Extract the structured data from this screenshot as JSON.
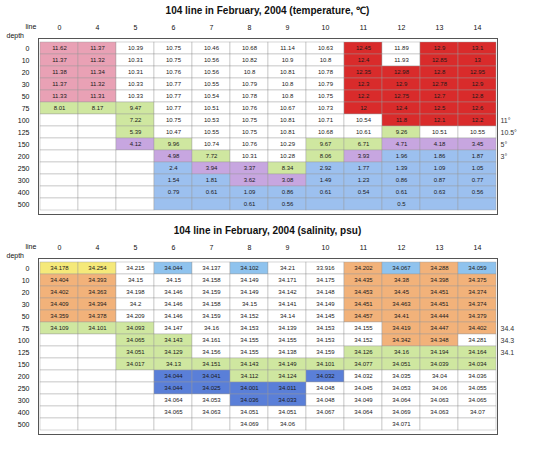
{
  "chart_data": [
    {
      "type": "heatmap",
      "title": "104 line in February, 2004 (temperature, ℃)",
      "x_label": "line",
      "y_label": "depth",
      "x": [
        0,
        4,
        5,
        6,
        7,
        8,
        9,
        10,
        11,
        12,
        13,
        14
      ],
      "y": [
        0,
        10,
        20,
        30,
        50,
        75,
        100,
        125,
        150,
        200,
        250,
        300,
        400,
        500
      ],
      "values": [
        [
          11.62,
          11.37,
          10.39,
          10.75,
          10.46,
          10.68,
          11.14,
          10.63,
          12.45,
          11.89,
          12.9,
          13.1
        ],
        [
          11.37,
          11.32,
          10.31,
          10.75,
          10.56,
          10.82,
          10.9,
          10.8,
          12.4,
          11.93,
          12.85,
          13.0
        ],
        [
          11.38,
          11.34,
          10.31,
          10.76,
          10.56,
          10.8,
          10.81,
          10.78,
          12.35,
          12.98,
          12.8,
          12.95
        ],
        [
          11.37,
          11.32,
          10.33,
          10.77,
          10.55,
          10.79,
          10.8,
          10.79,
          12.3,
          12.9,
          12.78,
          12.9
        ],
        [
          11.33,
          11.31,
          10.33,
          10.77,
          10.54,
          10.78,
          10.8,
          10.75,
          12.2,
          12.75,
          12.7,
          12.8
        ],
        [
          8.01,
          8.17,
          9.47,
          10.77,
          10.51,
          10.76,
          10.67,
          10.73,
          12.0,
          12.4,
          12.5,
          12.6
        ],
        [
          null,
          null,
          7.22,
          10.75,
          10.53,
          10.75,
          10.81,
          10.71,
          10.54,
          11.8,
          12.1,
          12.2
        ],
        [
          null,
          null,
          5.39,
          10.47,
          10.55,
          10.75,
          10.81,
          10.68,
          10.61,
          9.26,
          10.51,
          10.55
        ],
        [
          null,
          null,
          4.12,
          9.96,
          10.74,
          10.76,
          10.29,
          9.67,
          6.71,
          4.71,
          4.18,
          3.45
        ],
        [
          null,
          null,
          null,
          4.98,
          7.72,
          10.31,
          10.28,
          8.06,
          3.93,
          1.96,
          1.86,
          1.87
        ],
        [
          null,
          null,
          null,
          2.4,
          3.94,
          3.37,
          8.34,
          2.92,
          1.77,
          1.39,
          1.09,
          1.05
        ],
        [
          null,
          null,
          null,
          1.54,
          1.81,
          3.62,
          3.08,
          1.49,
          1.23,
          0.86,
          0.87,
          0.77
        ],
        [
          null,
          null,
          null,
          0.79,
          0.61,
          1.09,
          0.86,
          0.61,
          0.54,
          0.61,
          0.63,
          0.56
        ],
        [
          null,
          null,
          null,
          null,
          null,
          0.61,
          0.56,
          null,
          null,
          0.5,
          null,
          null
        ]
      ],
      "colors": [
        "#ffffff",
        "#e9a1b5",
        "#d92b2b",
        "#cfe7a0",
        "#c7a6e0",
        "#9cc0ef"
      ],
      "color_index": [
        [
          1,
          1,
          0,
          0,
          0,
          0,
          0,
          0,
          2,
          0,
          2,
          2
        ],
        [
          1,
          1,
          0,
          0,
          0,
          0,
          0,
          0,
          2,
          0,
          2,
          2
        ],
        [
          1,
          1,
          0,
          0,
          0,
          0,
          0,
          0,
          2,
          2,
          2,
          2
        ],
        [
          1,
          1,
          0,
          0,
          0,
          0,
          0,
          0,
          2,
          2,
          2,
          2
        ],
        [
          1,
          1,
          0,
          0,
          0,
          0,
          0,
          0,
          2,
          2,
          2,
          2
        ],
        [
          3,
          3,
          3,
          0,
          0,
          0,
          0,
          0,
          2,
          2,
          2,
          2
        ],
        [
          0,
          0,
          3,
          0,
          0,
          0,
          0,
          0,
          0,
          2,
          2,
          2
        ],
        [
          0,
          0,
          3,
          0,
          0,
          0,
          0,
          0,
          0,
          3,
          0,
          0
        ],
        [
          0,
          0,
          4,
          3,
          0,
          0,
          0,
          3,
          3,
          4,
          4,
          4
        ],
        [
          0,
          0,
          0,
          4,
          3,
          0,
          0,
          3,
          4,
          5,
          5,
          5
        ],
        [
          0,
          0,
          0,
          5,
          4,
          4,
          3,
          5,
          5,
          5,
          5,
          5
        ],
        [
          0,
          0,
          0,
          5,
          5,
          4,
          4,
          5,
          5,
          5,
          5,
          5
        ],
        [
          0,
          0,
          0,
          5,
          5,
          5,
          5,
          5,
          5,
          5,
          5,
          5
        ],
        [
          0,
          0,
          0,
          5,
          5,
          5,
          5,
          5,
          5,
          5,
          5,
          5
        ]
      ],
      "annotations": [
        {
          "text": "11°",
          "depth": 100
        },
        {
          "text": "10.5°",
          "depth": 125
        },
        {
          "text": "5°",
          "depth": 150
        },
        {
          "text": "3°",
          "depth": 200
        }
      ]
    },
    {
      "type": "heatmap",
      "title": "104 line in February, 2004 (salinity, psu)",
      "x_label": "line",
      "y_label": "depth",
      "x": [
        0,
        4,
        5,
        6,
        7,
        8,
        9,
        10,
        11,
        12,
        13,
        14
      ],
      "y": [
        0,
        10,
        20,
        30,
        50,
        75,
        100,
        125,
        150,
        200,
        250,
        300,
        400,
        500
      ],
      "values": [
        [
          34.178,
          34.254,
          34.215,
          34.044,
          34.137,
          34.102,
          34.21,
          33.916,
          34.202,
          34.067,
          34.288,
          34.059
        ],
        [
          34.404,
          34.393,
          34.15,
          34.15,
          34.158,
          34.149,
          34.171,
          34.175,
          34.435,
          34.38,
          34.398,
          34.375
        ],
        [
          34.402,
          34.363,
          34.198,
          34.146,
          34.159,
          34.149,
          34.142,
          34.148,
          34.453,
          34.45,
          34.451,
          34.374
        ],
        [
          34.409,
          34.394,
          34.2,
          34.146,
          34.158,
          34.15,
          34.141,
          34.149,
          34.451,
          34.463,
          34.451,
          34.374
        ],
        [
          34.359,
          34.378,
          34.209,
          34.146,
          34.159,
          34.152,
          34.14,
          34.145,
          34.457,
          34.41,
          34.444,
          34.379
        ],
        [
          34.109,
          34.101,
          34.093,
          34.147,
          34.16,
          34.153,
          34.139,
          34.153,
          34.155,
          34.419,
          34.447,
          34.402
        ],
        [
          null,
          null,
          34.065,
          34.143,
          34.161,
          34.155,
          34.155,
          34.153,
          34.152,
          34.342,
          34.348,
          34.281
        ],
        [
          null,
          null,
          34.051,
          34.129,
          34.156,
          34.155,
          34.138,
          34.159,
          34.126,
          34.16,
          34.194,
          34.164
        ],
        [
          null,
          null,
          34.017,
          34.13,
          34.151,
          34.143,
          34.149,
          34.101,
          34.077,
          34.051,
          34.039,
          34.034
        ],
        [
          null,
          null,
          null,
          34.044,
          34.041,
          34.112,
          34.124,
          34.032,
          34.032,
          34.035,
          34.04,
          34.036
        ],
        [
          null,
          null,
          null,
          34.044,
          34.025,
          34.001,
          34.011,
          34.048,
          34.045,
          34.053,
          34.06,
          34.055
        ],
        [
          null,
          null,
          null,
          34.064,
          34.053,
          34.036,
          34.033,
          34.048,
          34.049,
          34.064,
          34.063,
          34.065
        ],
        [
          null,
          null,
          null,
          34.065,
          34.063,
          34.051,
          34.051,
          34.067,
          34.064,
          34.069,
          34.063,
          34.07
        ],
        [
          null,
          null,
          null,
          null,
          null,
          34.069,
          34.06,
          null,
          null,
          34.071,
          null,
          null
        ]
      ],
      "colors": [
        "#ffffff",
        "#f2b27a",
        "#f5e97a",
        "#8fc3ee",
        "#cfe7a0",
        "#5a7fd8"
      ],
      "color_index": [
        [
          2,
          2,
          0,
          3,
          0,
          3,
          0,
          0,
          1,
          3,
          1,
          3
        ],
        [
          1,
          1,
          0,
          0,
          0,
          0,
          0,
          0,
          1,
          1,
          1,
          1
        ],
        [
          1,
          1,
          0,
          0,
          0,
          0,
          0,
          0,
          1,
          1,
          1,
          1
        ],
        [
          1,
          1,
          0,
          0,
          0,
          0,
          0,
          0,
          1,
          1,
          1,
          1
        ],
        [
          1,
          1,
          0,
          0,
          0,
          0,
          0,
          0,
          1,
          1,
          1,
          1
        ],
        [
          4,
          4,
          4,
          0,
          0,
          0,
          0,
          0,
          0,
          1,
          1,
          1
        ],
        [
          0,
          0,
          4,
          4,
          0,
          0,
          0,
          0,
          0,
          1,
          1,
          0
        ],
        [
          0,
          0,
          4,
          4,
          0,
          0,
          0,
          0,
          4,
          4,
          4,
          4
        ],
        [
          0,
          0,
          4,
          4,
          4,
          4,
          4,
          4,
          4,
          4,
          4,
          4
        ],
        [
          0,
          0,
          0,
          5,
          5,
          4,
          4,
          5,
          0,
          0,
          0,
          0
        ],
        [
          0,
          0,
          0,
          5,
          5,
          5,
          5,
          0,
          0,
          0,
          0,
          0
        ],
        [
          0,
          0,
          0,
          0,
          0,
          5,
          5,
          0,
          0,
          0,
          0,
          0
        ],
        [
          0,
          0,
          0,
          0,
          0,
          0,
          0,
          0,
          0,
          0,
          0,
          0
        ],
        [
          0,
          0,
          0,
          0,
          0,
          0,
          0,
          0,
          0,
          0,
          0,
          0
        ]
      ],
      "annotations": [
        {
          "text": "34.4",
          "depth": 75
        },
        {
          "text": "34.3",
          "depth": 100
        },
        {
          "text": "34.1",
          "depth": 125
        }
      ]
    }
  ]
}
